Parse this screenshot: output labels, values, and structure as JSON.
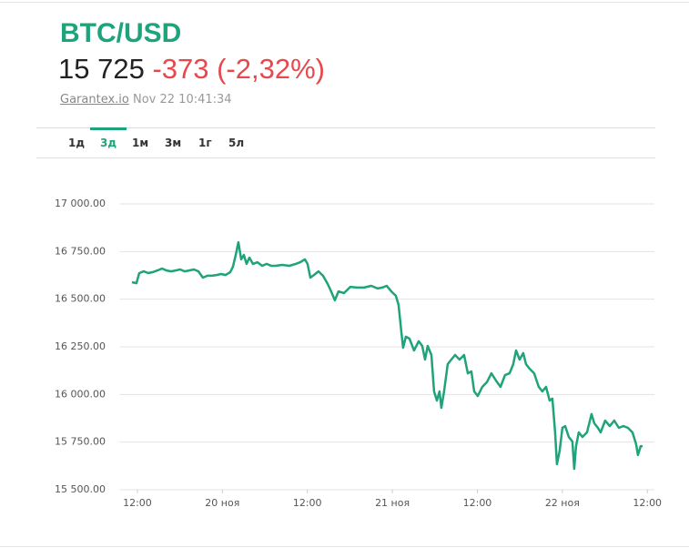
{
  "header": {
    "title": "BTC/USD",
    "price": "15 725",
    "change": "-373 (-2,32%)",
    "source": "Garantex.io",
    "timestamp": "Nov 22 10:41:34"
  },
  "tabs": {
    "items": [
      "1д",
      "3д",
      "1м",
      "3м",
      "1г",
      "5л"
    ],
    "active": "3д"
  },
  "chart_data": {
    "type": "line",
    "color": "#1fa37a",
    "grid": true,
    "xlim": [
      9.5,
      85
    ],
    "ylim": [
      15500,
      17160
    ],
    "xticks": [
      {
        "value": 12,
        "label": "12:00"
      },
      {
        "value": 24,
        "label": "20 ноя"
      },
      {
        "value": 36,
        "label": "12:00"
      },
      {
        "value": 48,
        "label": "21 ноя"
      },
      {
        "value": 60,
        "label": "12:00"
      },
      {
        "value": 72,
        "label": "22 ноя"
      },
      {
        "value": 84,
        "label": "12:00"
      }
    ],
    "yticks": [
      {
        "value": 15500,
        "label": "15 500.00"
      },
      {
        "value": 15750,
        "label": "15 750.00"
      },
      {
        "value": 16000,
        "label": "16 000.00"
      },
      {
        "value": 16250,
        "label": "16 250.00"
      },
      {
        "value": 16500,
        "label": "16 500.00"
      },
      {
        "value": 16750,
        "label": "16 750.00"
      },
      {
        "value": 17000,
        "label": "17 000.00"
      }
    ],
    "x": [
      11.23,
      11.87,
      12.26,
      12.9,
      13.54,
      14.18,
      14.83,
      15.47,
      16.11,
      16.75,
      17.4,
      18.04,
      18.68,
      19.32,
      19.97,
      20.61,
      21.25,
      21.89,
      22.54,
      23.18,
      23.82,
      24.46,
      25.11,
      25.49,
      25.88,
      26.26,
      26.65,
      27.03,
      27.42,
      27.81,
      28.32,
      28.96,
      29.61,
      30.25,
      30.89,
      31.53,
      32.43,
      33.46,
      34.36,
      35.0,
      35.64,
      36.03,
      36.42,
      36.93,
      37.57,
      38.21,
      38.86,
      39.24,
      39.88,
      40.4,
      41.17,
      42.07,
      42.97,
      43.99,
      45.02,
      45.92,
      46.57,
      47.21,
      47.85,
      48.49,
      48.88,
      49.27,
      49.52,
      49.91,
      50.42,
      51.06,
      51.71,
      52.22,
      52.61,
      52.99,
      53.51,
      53.89,
      54.28,
      54.66,
      54.92,
      55.3,
      55.82,
      56.33,
      56.85,
      57.49,
      58.13,
      58.65,
      59.16,
      59.55,
      60.06,
      60.7,
      61.34,
      61.99,
      62.63,
      63.27,
      63.91,
      64.56,
      65.07,
      65.46,
      65.97,
      66.48,
      66.87,
      67.38,
      68.03,
      68.67,
      69.18,
      69.7,
      70.21,
      70.6,
      70.98,
      71.24,
      71.62,
      72.01,
      72.4,
      72.91,
      73.42,
      73.68,
      73.94,
      74.32,
      74.84,
      75.48,
      76.12,
      76.51,
      77.02,
      77.41,
      78.05,
      78.69,
      79.33,
      79.98,
      80.62,
      81.26,
      81.9,
      82.42,
      82.68,
      83.06,
      83.32
    ],
    "values": [
      16589,
      16584,
      16637,
      16646,
      16637,
      16642,
      16651,
      16661,
      16651,
      16646,
      16651,
      16656,
      16646,
      16651,
      16656,
      16646,
      16613,
      16623,
      16623,
      16627,
      16632,
      16627,
      16642,
      16670,
      16732,
      16799,
      16709,
      16732,
      16685,
      16718,
      16685,
      16694,
      16675,
      16685,
      16675,
      16675,
      16680,
      16675,
      16685,
      16694,
      16709,
      16685,
      16613,
      16627,
      16646,
      16623,
      16580,
      16551,
      16494,
      16541,
      16532,
      16565,
      16561,
      16561,
      16570,
      16556,
      16561,
      16570,
      16541,
      16518,
      16470,
      16326,
      16245,
      16303,
      16293,
      16231,
      16279,
      16255,
      16183,
      16255,
      16207,
      16016,
      15968,
      16016,
      15930,
      16016,
      16159,
      16183,
      16207,
      16183,
      16207,
      16111,
      16121,
      16016,
      15992,
      16040,
      16064,
      16111,
      16073,
      16040,
      16102,
      16111,
      16159,
      16231,
      16183,
      16217,
      16159,
      16135,
      16111,
      16040,
      16016,
      16040,
      15968,
      15978,
      15801,
      15634,
      15705,
      15825,
      15834,
      15777,
      15753,
      15610,
      15729,
      15801,
      15777,
      15801,
      15897,
      15849,
      15825,
      15801,
      15863,
      15834,
      15863,
      15825,
      15834,
      15825,
      15801,
      15739,
      15682,
      15729,
      15729
    ]
  }
}
